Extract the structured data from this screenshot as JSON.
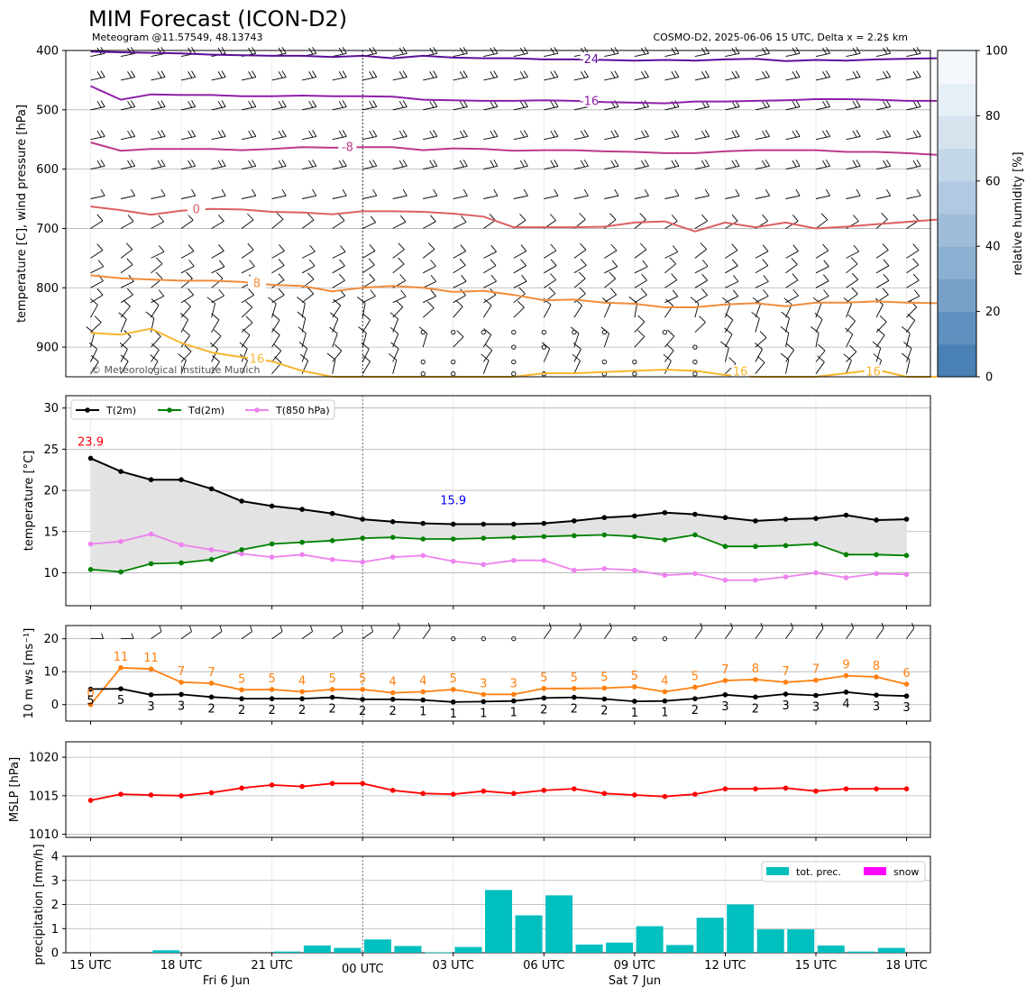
{
  "title": "MIM Forecast (ICON-D2)",
  "subtitle_left": "Meteogram @11.57549, 48.13743",
  "subtitle_right": "COSMO-D2, 2025-06-06 15 UTC, Delta x = 2.2$ km",
  "copyright": "© Meteorological Institute Munich",
  "colors": {
    "t2m": "#000000",
    "td2m": "#008000",
    "t850": "#ee82ee",
    "wind_max": "#ff7f0e",
    "mslp": "#ff0000",
    "precip": "#00bfbf",
    "snow": "#ff00ff",
    "tmax_label": "#ff0000",
    "tmin_label": "#0000ff"
  },
  "x_axis": {
    "tick_labels": [
      "15 UTC",
      "18 UTC",
      "21 UTC",
      "00 UTC",
      "03 UTC",
      "06 UTC",
      "09 UTC",
      "12 UTC",
      "15 UTC",
      "18 UTC"
    ],
    "day_labels": [
      "Fri 6 Jun",
      "Sat 7 Jun"
    ]
  },
  "chart_data": [
    {
      "type": "contour",
      "name": "upper-air",
      "ylabel": "temperature [C], wind pressure [hPa]",
      "ylim": [
        950,
        400
      ],
      "yticks": [
        "400",
        "500",
        "600",
        "700",
        "800",
        "900"
      ],
      "colorbar": {
        "label": "relative humidity [%]",
        "ticks": [
          "0",
          "20",
          "40",
          "60",
          "80",
          "100"
        ]
      },
      "isotherms": [
        {
          "label": "-24",
          "color": "#5b0f9a",
          "p": [
            402,
            403,
            404,
            405,
            407,
            408,
            409,
            409,
            411,
            409,
            413,
            409,
            412,
            413,
            413,
            415,
            415,
            416,
            417,
            416,
            417,
            415,
            414,
            418,
            416,
            417,
            415,
            414,
            413
          ]
        },
        {
          "label": "-16",
          "color": "#8e1fa8",
          "p": [
            460,
            483,
            474,
            475,
            475,
            477,
            477,
            476,
            477,
            477,
            478,
            483,
            484,
            485,
            485,
            484,
            485,
            487,
            488,
            489,
            486,
            486,
            485,
            484,
            482,
            482,
            483,
            485,
            485
          ]
        },
        {
          "label": "-8",
          "color": "#bb3a8a",
          "p": [
            555,
            569,
            566,
            566,
            566,
            568,
            566,
            563,
            564,
            563,
            563,
            568,
            565,
            566,
            569,
            568,
            568,
            570,
            571,
            573,
            573,
            570,
            568,
            568,
            568,
            571,
            571,
            573,
            576
          ]
        },
        {
          "label": "0",
          "color": "#dc5f61",
          "p": [
            663,
            669,
            677,
            670,
            667,
            668,
            672,
            673,
            676,
            671,
            671,
            672,
            675,
            680,
            698,
            698,
            698,
            697,
            690,
            688,
            705,
            690,
            698,
            690,
            700,
            697,
            693,
            689,
            685
          ]
        },
        {
          "label": "8",
          "color": "#f08c3c",
          "p": [
            779,
            784,
            786,
            788,
            788,
            790,
            795,
            797,
            806,
            800,
            797,
            800,
            807,
            805,
            812,
            821,
            820,
            825,
            827,
            833,
            833,
            828,
            826,
            831,
            825,
            825,
            823,
            825,
            826
          ]
        },
        {
          "label": "16",
          "color": "#f7b52f",
          "p": [
            876,
            879,
            869,
            893,
            909,
            917,
            924,
            940,
            950,
            951,
            952,
            953,
            952,
            951,
            950,
            944,
            944,
            942,
            940,
            938,
            940,
            947,
            950,
            951,
            950,
            944,
            938,
            950,
            950
          ]
        }
      ]
    },
    {
      "type": "line",
      "name": "surface-temperature",
      "ylabel": "temperature [$^\\circ$C]",
      "ylim": [
        6,
        31.5
      ],
      "yticks": [
        10,
        15,
        20,
        25,
        30
      ],
      "legend": [
        "T(2m)",
        "Td(2m)",
        "T(850 hPa)"
      ],
      "max_label": "23.9",
      "min_label": "15.9",
      "series": [
        {
          "name": "T(2m)",
          "values": [
            23.9,
            22.3,
            21.3,
            21.3,
            20.2,
            18.7,
            18.1,
            17.7,
            17.2,
            16.5,
            16.2,
            16.0,
            15.9,
            15.9,
            15.9,
            16.0,
            16.3,
            16.7,
            16.9,
            17.3,
            17.1,
            16.7,
            16.3,
            16.5,
            16.6,
            17.0,
            16.4,
            16.5
          ]
        },
        {
          "name": "Td(2m)",
          "values": [
            10.4,
            10.1,
            11.1,
            11.2,
            11.6,
            12.8,
            13.5,
            13.7,
            13.9,
            14.2,
            14.3,
            14.1,
            14.1,
            14.2,
            14.3,
            14.4,
            14.5,
            14.6,
            14.4,
            14.0,
            14.6,
            13.2,
            13.2,
            13.3,
            13.5,
            12.2,
            12.2,
            12.1
          ]
        },
        {
          "name": "T(850 hPa)",
          "values": [
            13.5,
            13.8,
            14.7,
            13.4,
            12.8,
            12.3,
            11.9,
            12.2,
            11.6,
            11.3,
            11.9,
            12.1,
            11.4,
            11.0,
            11.5,
            11.5,
            10.3,
            10.5,
            10.3,
            9.7,
            9.9,
            9.1,
            9.1,
            9.5,
            10.0,
            9.4,
            9.9,
            9.8
          ]
        }
      ]
    },
    {
      "type": "line",
      "name": "wind",
      "ylabel": "10 m ws [ms$^{-1}$]",
      "ylim": [
        -5,
        24
      ],
      "yticks": [
        0,
        10,
        20
      ],
      "series": [
        {
          "name": "mean",
          "values": [
            4.7,
            4.8,
            3.0,
            3.1,
            2.3,
            1.8,
            1.8,
            1.8,
            2.2,
            1.6,
            1.6,
            1.4,
            0.8,
            0.9,
            1.1,
            2.0,
            2.2,
            1.7,
            1.0,
            1.1,
            1.8,
            3.0,
            2.3,
            3.2,
            2.8,
            3.8,
            2.9,
            2.6
          ]
        },
        {
          "name": "max",
          "values": [
            0.0,
            11.2,
            10.8,
            6.8,
            6.5,
            4.5,
            4.6,
            3.9,
            4.6,
            4.6,
            3.6,
            3.9,
            4.6,
            3.1,
            3.1,
            4.9,
            4.9,
            5.0,
            5.4,
            3.9,
            5.3,
            7.3,
            7.6,
            6.8,
            7.4,
            8.8,
            8.4,
            6.2
          ]
        }
      ],
      "mean_labels": [
        "5",
        "5",
        "3",
        "3",
        "2",
        "2",
        "2",
        "2",
        "2",
        "2",
        "2",
        "1",
        "1",
        "1",
        "1",
        "2",
        "2",
        "2",
        "1",
        "1",
        "2",
        "3",
        "2",
        "3",
        "3",
        "4",
        "3",
        "3"
      ],
      "max_labels": [
        "0",
        "11",
        "11",
        "7",
        "7",
        "5",
        "5",
        "4",
        "5",
        "5",
        "4",
        "4",
        "5",
        "3",
        "3",
        "5",
        "5",
        "5",
        "5",
        "4",
        "5",
        "7",
        "8",
        "7",
        "7",
        "9",
        "8",
        "6"
      ]
    },
    {
      "type": "line",
      "name": "mslp",
      "ylabel": "MSLP [hPa]",
      "ylim": [
        1009.6,
        1022
      ],
      "yticks": [
        1010,
        1015,
        1020
      ],
      "values": [
        1014.4,
        1015.2,
        1015.1,
        1015.0,
        1015.4,
        1016.0,
        1016.4,
        1016.2,
        1016.6,
        1016.6,
        1015.7,
        1015.3,
        1015.2,
        1015.6,
        1015.3,
        1015.7,
        1015.9,
        1015.3,
        1015.1,
        1014.9,
        1015.2,
        1015.9,
        1015.9,
        1016.0,
        1015.6,
        1015.9,
        1015.9,
        1015.9
      ]
    },
    {
      "type": "bar",
      "name": "precipitation",
      "ylabel": "precipitation [mm/h]",
      "ylim": [
        0,
        4
      ],
      "yticks": [
        0,
        1,
        2,
        3,
        4
      ],
      "legend": [
        "tot. prec.",
        "snow"
      ],
      "values": [
        0,
        0,
        0.1,
        0,
        0,
        0,
        0.05,
        0.3,
        0.2,
        0.55,
        0.28,
        0.02,
        0.24,
        2.6,
        1.55,
        2.38,
        0.34,
        0.42,
        1.1,
        0.32,
        1.45,
        2.0,
        0.97,
        0.97,
        0.3,
        0.05,
        0.2,
        0
      ]
    }
  ]
}
